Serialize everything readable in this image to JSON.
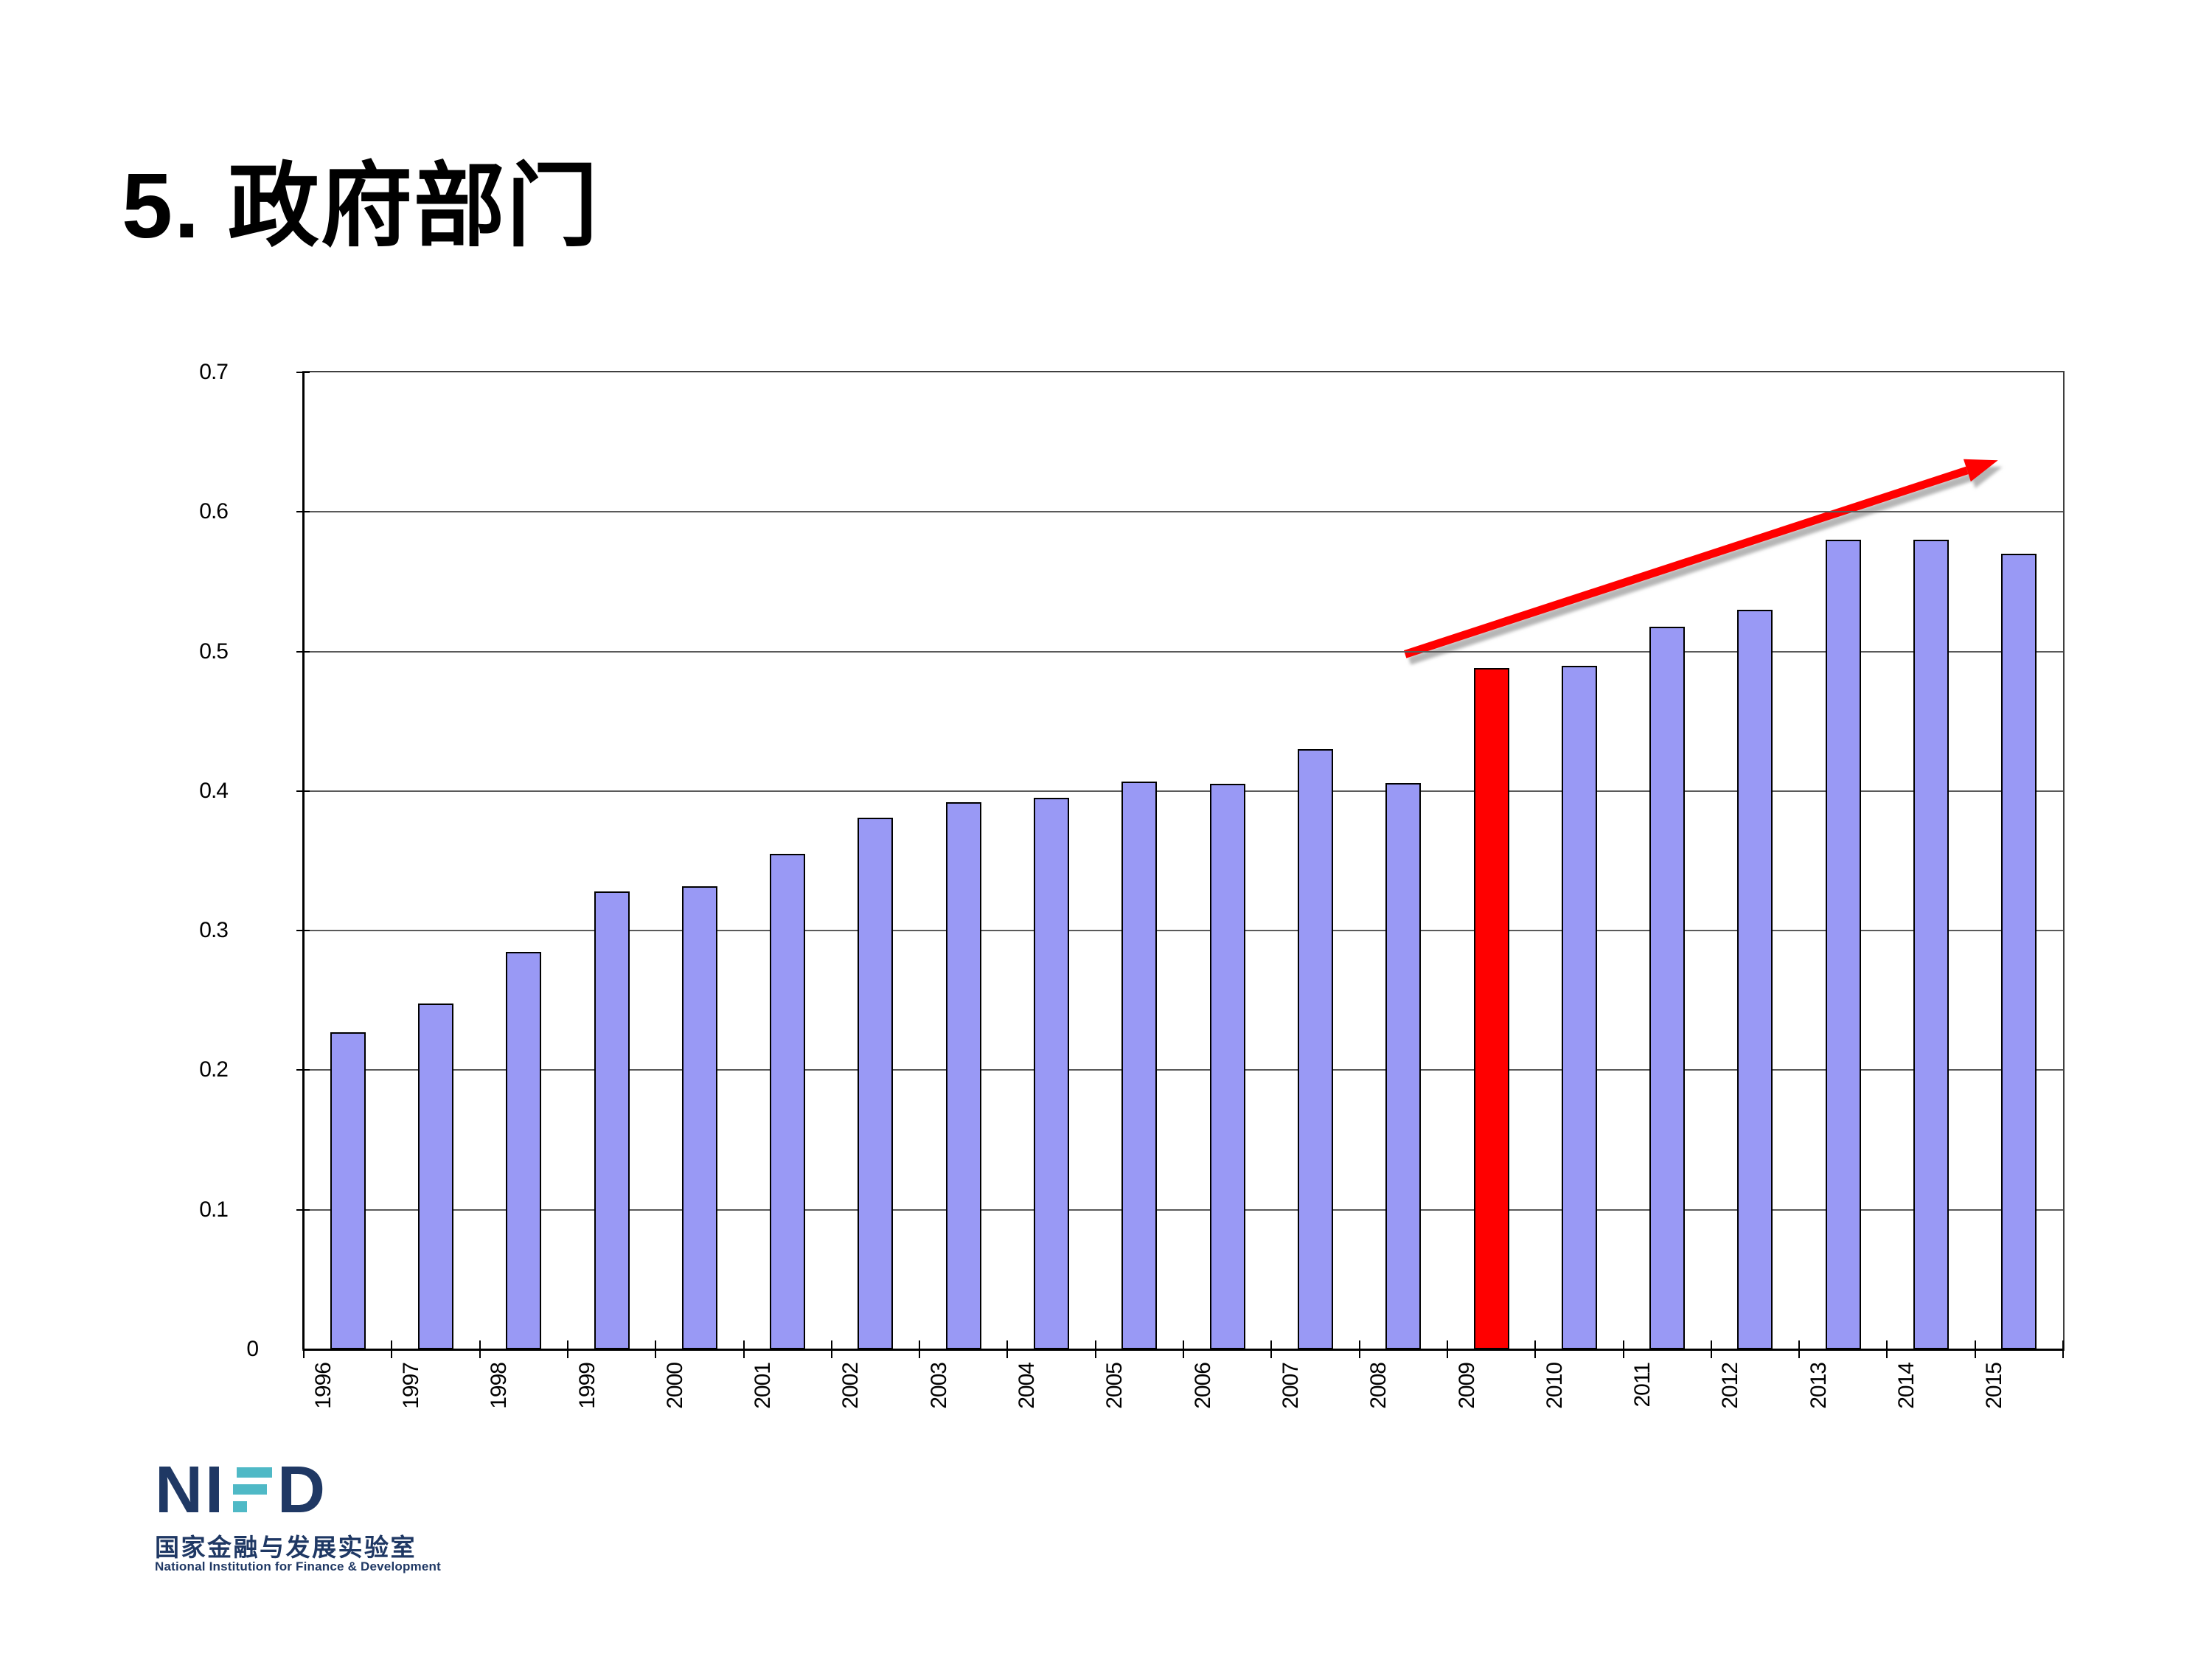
{
  "title": "5. 政府部门",
  "chart_data": {
    "type": "bar",
    "title": "",
    "xlabel": "",
    "ylabel": "",
    "categories": [
      "1996",
      "1997",
      "1998",
      "1999",
      "2000",
      "2001",
      "2002",
      "2003",
      "2004",
      "2005",
      "2006",
      "2007",
      "2008",
      "2009",
      "2010",
      "2011",
      "2012",
      "2013",
      "2014",
      "2015"
    ],
    "values": [
      0.227,
      0.248,
      0.285,
      0.328,
      0.332,
      0.355,
      0.381,
      0.392,
      0.395,
      0.407,
      0.405,
      0.43,
      0.406,
      0.488,
      0.49,
      0.518,
      0.53,
      0.58,
      0.58,
      0.57
    ],
    "highlight_category": "2009",
    "ylim": [
      0,
      0.7
    ],
    "yticks": [
      "0",
      "0.1",
      "0.2",
      "0.3",
      "0.4",
      "0.5",
      "0.6",
      "0.7"
    ],
    "grid": true,
    "legend": false,
    "colors": {
      "bar_fill": "#9999F5",
      "bar_border": "#000000",
      "highlight_fill": "#FF0000",
      "gridline": "#5A5A5A",
      "axis": "#000000",
      "tick_label": "#000000"
    },
    "annotation_arrow": {
      "color": "#FF0000",
      "x1_frac": 0.626,
      "value1": 0.498,
      "x2_frac": 0.963,
      "value2": 0.637
    }
  },
  "logo": {
    "wordmark_left": "NI",
    "wordmark_right": "D",
    "stylized_letter": "F",
    "chinese": "国家金融与发展实验室",
    "english": "National Institution for Finance & Development",
    "navy": "#1F3864",
    "teal": "#4FB9C6"
  }
}
